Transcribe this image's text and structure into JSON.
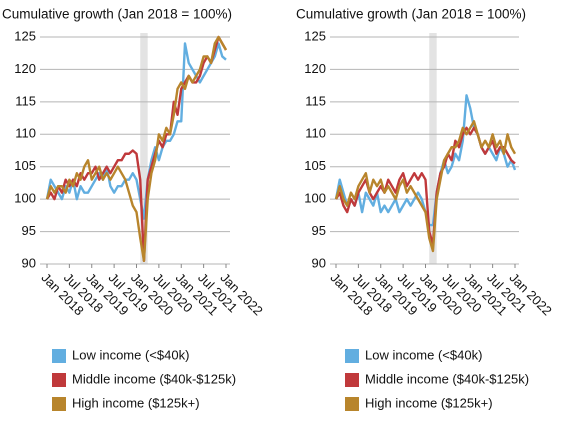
{
  "chart_data": [
    {
      "type": "line",
      "title": "Cumulative growth (Jan 2018 = 100%)",
      "categories": [
        "Jan 2018",
        null,
        null,
        null,
        null,
        null,
        "Jul 2018",
        null,
        null,
        null,
        null,
        null,
        "Jan 2019",
        null,
        null,
        null,
        null,
        null,
        "Jul 2019",
        null,
        null,
        null,
        null,
        null,
        "Jan 2020",
        null,
        null,
        null,
        null,
        null,
        "Jul 2020",
        null,
        null,
        null,
        null,
        null,
        "Jan 2021",
        null,
        null,
        null,
        null,
        null,
        "Jul 2021",
        null,
        null,
        null,
        null,
        null,
        "Jan 2022"
      ],
      "series": [
        {
          "name": "Low income (<$40k)",
          "color": "#62aee0",
          "values": [
            100,
            103,
            102,
            101,
            100,
            102,
            101,
            103,
            100,
            102,
            101,
            101,
            102,
            103,
            104,
            103,
            105,
            102,
            101,
            102,
            102,
            103,
            103,
            104,
            103,
            100,
            97,
            103,
            106,
            108,
            106,
            108,
            109,
            109,
            110,
            112,
            112,
            124,
            121,
            120,
            119,
            118,
            119,
            120,
            121,
            122,
            124,
            122,
            121.5
          ]
        },
        {
          "name": "Middle income ($40k-$125k)",
          "color": "#c0393b",
          "values": [
            100,
            101,
            100,
            102,
            101,
            103,
            102,
            103,
            102,
            104,
            103,
            104,
            104,
            105,
            103,
            104,
            105,
            104,
            105,
            106,
            106,
            107,
            107,
            107.5,
            107,
            103,
            90.5,
            103,
            105,
            107,
            109,
            108,
            110,
            110,
            115,
            113,
            117,
            118,
            119,
            118,
            118,
            119,
            121,
            122,
            121,
            123,
            125,
            124,
            123
          ]
        },
        {
          "name": "High income ($125k+)",
          "color": "#b8852c",
          "values": [
            100,
            102,
            101,
            102,
            102,
            101,
            103,
            102,
            104,
            103,
            105,
            106,
            103,
            104,
            105,
            103,
            104,
            103,
            104,
            105,
            104,
            103,
            101,
            99,
            98,
            94,
            90.5,
            100,
            104,
            106,
            110,
            109,
            111,
            110,
            113,
            117,
            118,
            117,
            119,
            118,
            119,
            120,
            122,
            122,
            121,
            124,
            125,
            124,
            123
          ]
        }
      ],
      "ylim": [
        90,
        125
      ],
      "yticks": [
        90,
        95,
        100,
        105,
        110,
        115,
        120,
        125
      ],
      "grid": true
    },
    {
      "type": "line",
      "title": "Cumulative growth (Jan 2018 = 100%)",
      "categories": [
        "Jan 2018",
        null,
        null,
        null,
        null,
        null,
        "Jul 2018",
        null,
        null,
        null,
        null,
        null,
        "Jan 2019",
        null,
        null,
        null,
        null,
        null,
        "Jul 2019",
        null,
        null,
        null,
        null,
        null,
        "Jan 2020",
        null,
        null,
        null,
        null,
        null,
        "Jul 2020",
        null,
        null,
        null,
        null,
        null,
        "Jan 2021",
        null,
        null,
        null,
        null,
        null,
        "Jul 2021",
        null,
        null,
        null,
        null,
        null,
        "Jan 2022"
      ],
      "series": [
        {
          "name": "Low income (<$40k)",
          "color": "#62aee0",
          "values": [
            100,
            103,
            101,
            99,
            100,
            99,
            101,
            98,
            101,
            100,
            99,
            101,
            98,
            99,
            98,
            99,
            100,
            98,
            99,
            100,
            99,
            100,
            101,
            100,
            98,
            96,
            96,
            101,
            104,
            106,
            104,
            105,
            107,
            106,
            109,
            116,
            114,
            111,
            110,
            108,
            107,
            108,
            107,
            106,
            108,
            107,
            105,
            106,
            104.5
          ]
        },
        {
          "name": "Middle income ($40k-$125k)",
          "color": "#c0393b",
          "values": [
            100,
            101,
            99,
            98,
            100,
            99,
            101,
            102,
            103,
            101,
            100,
            101,
            102,
            101,
            103,
            102,
            101,
            103,
            104,
            102,
            103,
            104,
            103,
            104,
            103,
            95,
            93,
            101,
            104,
            105,
            107,
            106,
            109,
            108,
            110,
            111,
            110,
            111,
            110,
            108,
            107,
            108,
            109,
            107,
            108,
            108,
            107,
            106,
            105.5
          ]
        },
        {
          "name": "High income ($125k+)",
          "color": "#b8852c",
          "values": [
            100,
            102,
            100,
            99,
            101,
            100,
            102,
            103,
            104,
            101,
            103,
            102,
            103,
            101,
            102,
            101,
            100,
            102,
            103,
            101,
            102,
            101,
            100,
            99,
            98,
            94,
            92,
            100,
            103,
            106,
            107,
            108,
            108,
            109,
            111,
            110,
            111,
            112,
            110,
            108,
            109,
            108,
            110,
            108,
            109,
            107,
            110,
            108,
            107
          ]
        }
      ],
      "ylim": [
        90,
        125
      ],
      "yticks": [
        90,
        95,
        100,
        105,
        110,
        115,
        120,
        125
      ],
      "grid": true
    }
  ]
}
